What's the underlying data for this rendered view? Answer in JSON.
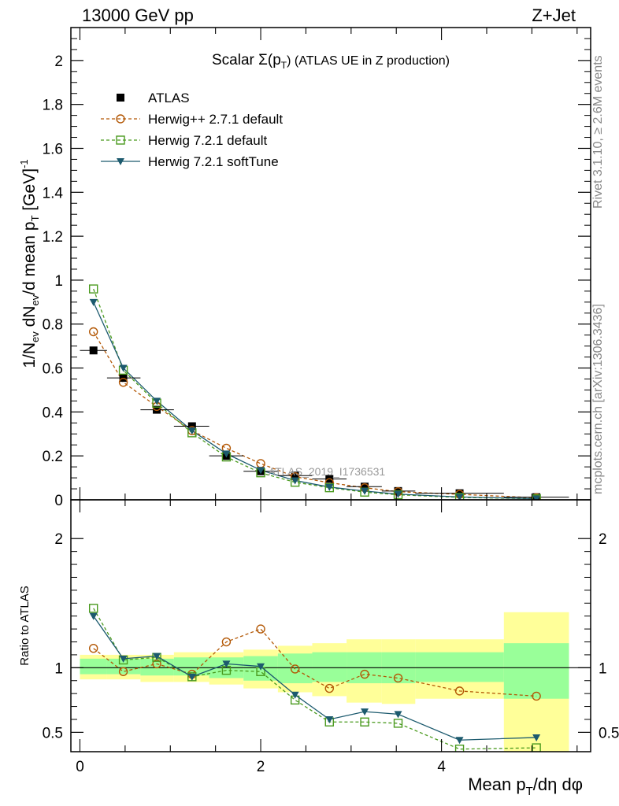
{
  "header": {
    "energy_label": "13000 GeV pp",
    "process_label": "Z+Jet"
  },
  "side": {
    "rivet_label": "Rivet 3.1.10, ≥ 2.6M events",
    "mcplots_label": "mcplots.cern.ch [arXiv:1306.3436]"
  },
  "watermark": "ATLAS_2019_I1736531",
  "chart_data": {
    "type": "line",
    "title": "Scalar Σ(p_T) (ATLAS UE in Z production)",
    "ylabel": "1/N_ev dN_ev/d mean p_T [GeV]^-1",
    "xlabel": "Mean p_T/dη dφ",
    "xlim": [
      -0.1,
      5.65
    ],
    "ylim": [
      0,
      2.15
    ],
    "x": [
      0.15,
      0.48,
      0.85,
      1.24,
      1.62,
      2.0,
      2.38,
      2.76,
      3.15,
      3.52,
      4.2,
      5.05
    ],
    "xerr": [
      [
        0,
        0.3
      ],
      [
        0.3,
        0.67
      ],
      [
        0.67,
        1.04
      ],
      [
        1.04,
        1.43
      ],
      [
        1.43,
        1.81
      ],
      [
        1.81,
        2.19
      ],
      [
        2.19,
        2.57
      ],
      [
        2.57,
        2.95
      ],
      [
        2.95,
        3.34
      ],
      [
        3.34,
        3.71
      ],
      [
        3.71,
        4.69
      ],
      [
        4.69,
        5.41
      ]
    ],
    "xticks": [
      0,
      2,
      4
    ],
    "yticks": [
      0,
      0.2,
      0.4,
      0.6,
      0.8,
      1,
      1.2,
      1.4,
      1.6,
      1.8,
      2
    ],
    "ytick_labels": [
      "0",
      "0.2",
      "0.4",
      "0.6",
      "0.8",
      "1",
      "1.2",
      "1.4",
      "1.6",
      "1.8",
      "2"
    ],
    "legend_placement": "top-left",
    "series": [
      {
        "name": "ATLAS",
        "color": "#000000",
        "marker": "square-filled",
        "values": [
          0.68,
          0.555,
          0.41,
          0.335,
          0.2,
          0.13,
          0.11,
          0.095,
          0.06,
          0.04,
          0.03,
          0.012
        ]
      },
      {
        "name": "Herwig++ 2.7.1 default",
        "color": "#b35806",
        "marker": "circle-open",
        "dash": true,
        "values": [
          0.765,
          0.535,
          0.425,
          0.315,
          0.235,
          0.165,
          0.105,
          0.078,
          0.055,
          0.037,
          0.025,
          0.009
        ]
      },
      {
        "name": "Herwig 7.2.1 default",
        "color": "#4a9a1e",
        "marker": "square-open",
        "dash": true,
        "values": [
          0.96,
          0.59,
          0.44,
          0.305,
          0.195,
          0.123,
          0.08,
          0.055,
          0.035,
          0.023,
          0.011,
          0.0045
        ]
      },
      {
        "name": "Herwig 7.2.1 softTune",
        "color": "#1c5a6e",
        "marker": "triangle-down-filled",
        "values": [
          0.9,
          0.6,
          0.45,
          0.315,
          0.21,
          0.135,
          0.088,
          0.058,
          0.04,
          0.026,
          0.013,
          0.0055
        ]
      }
    ],
    "ratio": {
      "ylabel": "Ratio to ATLAS",
      "ylim": [
        0.35,
        2.3
      ],
      "yticks": [
        0.5,
        1,
        2
      ],
      "ytick_labels": [
        "0.5",
        "1",
        "2"
      ],
      "bands": {
        "inner": {
          "color": "#99ff99",
          "lo": [
            0.95,
            0.95,
            0.94,
            0.94,
            0.92,
            0.9,
            0.88,
            0.89,
            0.88,
            0.88,
            0.89,
            0.76
          ],
          "hi": [
            1.07,
            1.07,
            1.07,
            1.08,
            1.08,
            1.09,
            1.11,
            1.12,
            1.12,
            1.12,
            1.12,
            1.19
          ]
        },
        "outer": {
          "color": "#ffff99",
          "lo": [
            0.91,
            0.91,
            0.89,
            0.89,
            0.87,
            0.84,
            0.81,
            0.78,
            0.73,
            0.72,
            0.76,
            0.34
          ],
          "hi": [
            1.1,
            1.1,
            1.1,
            1.12,
            1.12,
            1.14,
            1.17,
            1.19,
            1.22,
            1.22,
            1.22,
            1.43
          ]
        }
      },
      "series": [
        {
          "name": "Herwig++ 2.7.1 default",
          "values": [
            1.15,
            0.97,
            1.03,
            0.95,
            1.2,
            1.3,
            0.99,
            0.84,
            0.95,
            0.92,
            0.82,
            0.78
          ]
        },
        {
          "name": "Herwig 7.2.1 default",
          "values": [
            1.46,
            1.06,
            1.08,
            0.93,
            0.98,
            0.97,
            0.75,
            0.58,
            0.58,
            0.57,
            0.37,
            0.38
          ]
        },
        {
          "name": "Herwig 7.2.1 softTune",
          "values": [
            1.4,
            1.07,
            1.09,
            0.93,
            1.03,
            1.01,
            0.79,
            0.6,
            0.66,
            0.64,
            0.44,
            0.46
          ]
        }
      ]
    }
  }
}
